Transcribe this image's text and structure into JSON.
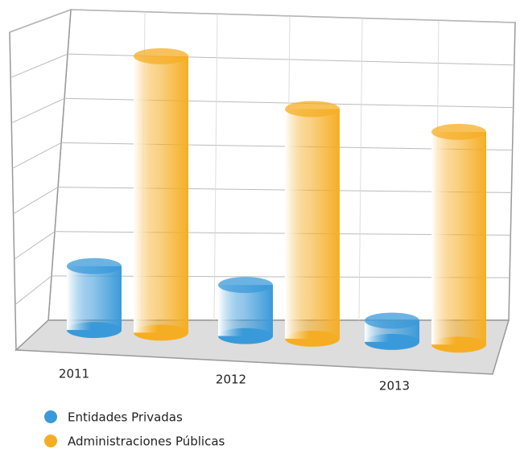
{
  "chart_data": {
    "type": "bar3d",
    "categories": [
      "2011",
      "2012",
      "2013"
    ],
    "series": [
      {
        "name": "Entidades Privadas",
        "color": "#3a9ad9",
        "values": [
          1.5,
          1.2,
          0.5
        ]
      },
      {
        "name": "Administraciones Públicas",
        "color": "#f5ae24",
        "values": [
          6.5,
          5.4,
          5.0
        ]
      }
    ],
    "ylim": [
      0,
      7
    ],
    "yticks": [
      1,
      2,
      3,
      4,
      5,
      6,
      7
    ],
    "grid": true,
    "legend": "bottom"
  }
}
